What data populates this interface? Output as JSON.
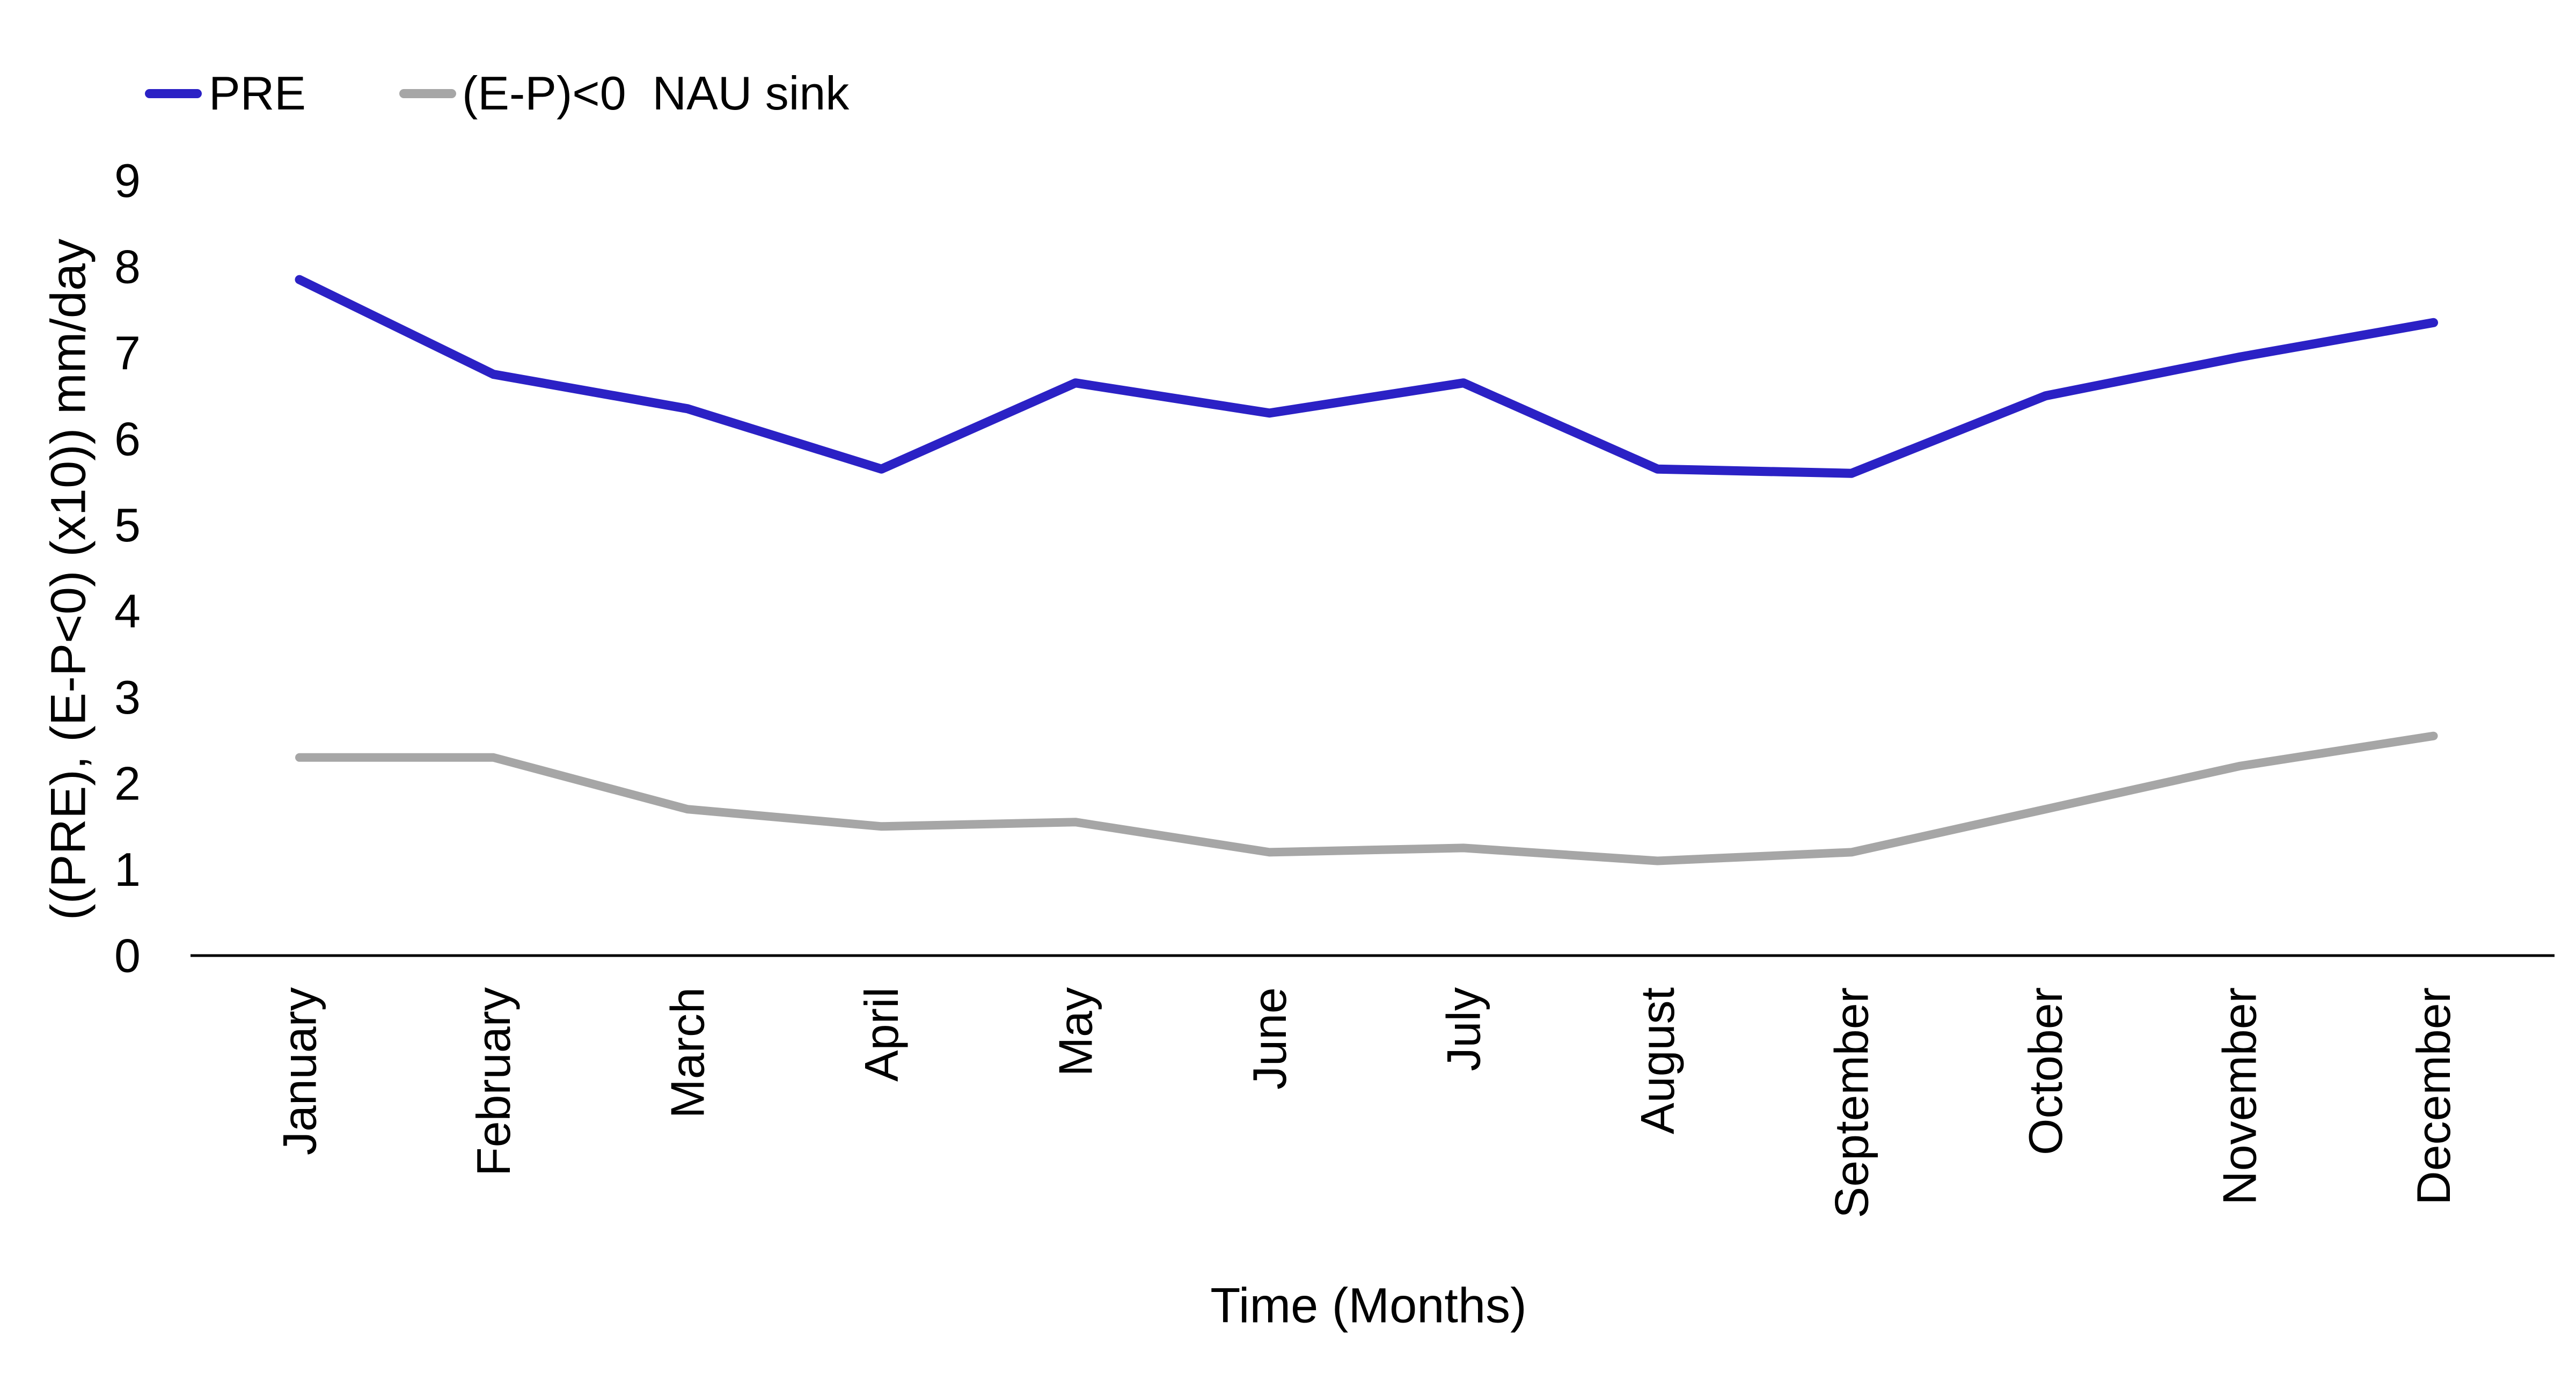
{
  "chart_data": {
    "type": "line",
    "title": "",
    "xlabel": "Time (Months)",
    "ylabel": "((PRE), (E-P<0) (x10)) mm/day",
    "categories": [
      "January",
      "February",
      "March",
      "April",
      "May",
      "June",
      "July",
      "August",
      "September",
      "October",
      "November",
      "December"
    ],
    "series": [
      {
        "name": "PRE",
        "color": "#2b21c5",
        "values": [
          7.85,
          6.75,
          6.35,
          5.65,
          6.65,
          6.3,
          6.65,
          5.65,
          5.6,
          6.5,
          6.95,
          7.35
        ]
      },
      {
        "name": "(E-P)<0  NAU sink",
        "color": "#a6a6a6",
        "values": [
          2.3,
          2.3,
          1.7,
          1.5,
          1.55,
          1.2,
          1.25,
          1.1,
          1.2,
          1.7,
          2.2,
          2.55
        ]
      }
    ],
    "ylim": [
      0,
      9
    ],
    "yticks": [
      0,
      1,
      2,
      3,
      4,
      5,
      6,
      7,
      8,
      9
    ],
    "grid": false,
    "legend_position": "top-left",
    "axis_color": "#000000",
    "background_color": "#ffffff"
  },
  "legend": {
    "items": [
      {
        "label": "PRE"
      },
      {
        "label": "(E-P)<0  NAU sink"
      }
    ]
  }
}
